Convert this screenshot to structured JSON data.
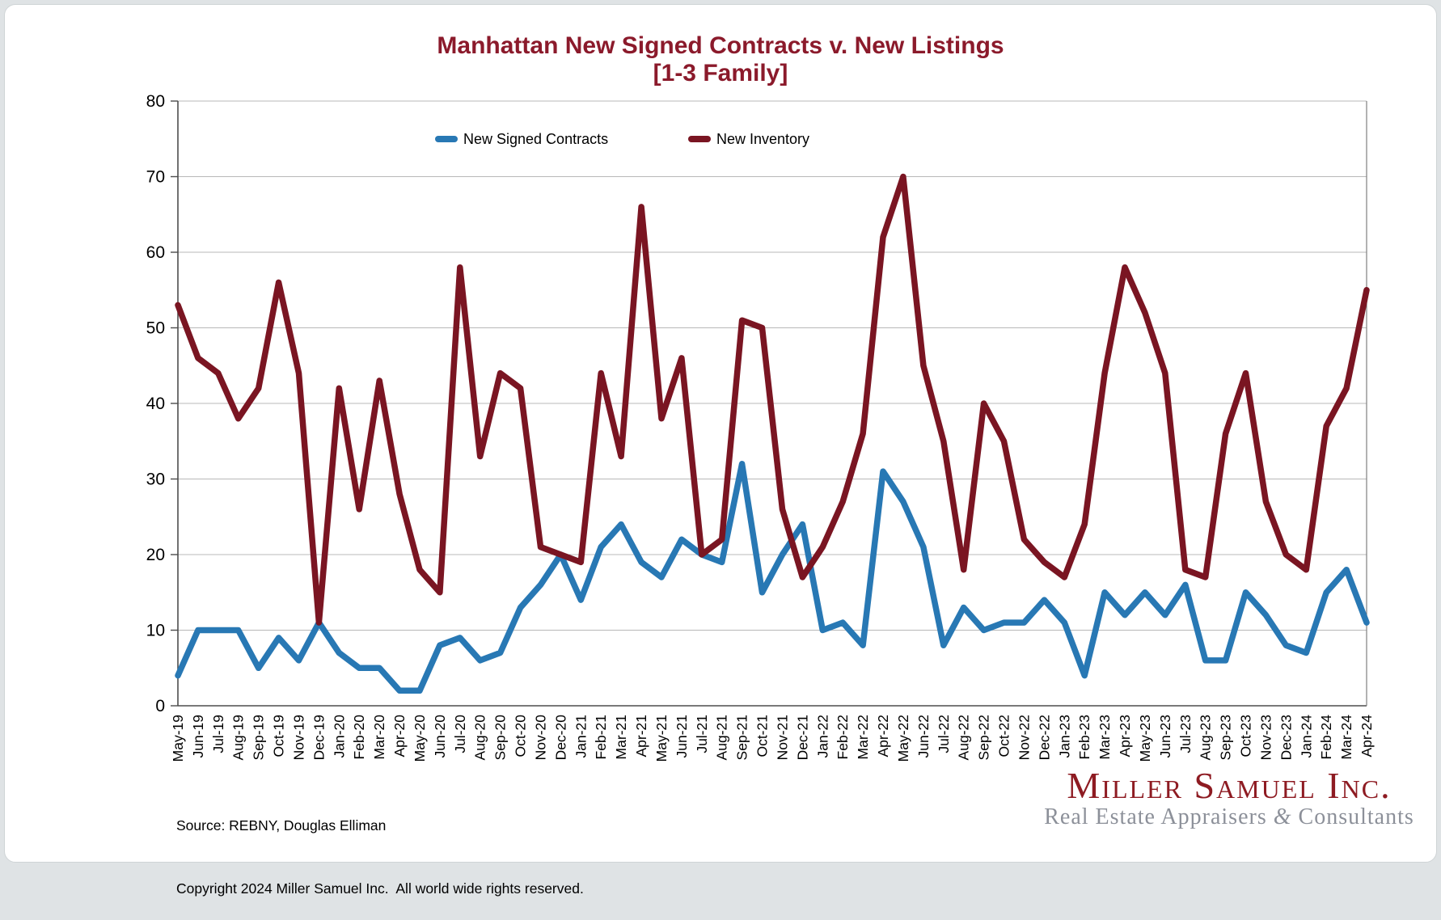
{
  "title": {
    "line1": "Manhattan New Signed Contracts v. New Listings",
    "line2": "[1-3 Family]",
    "color": "#8B1A2B"
  },
  "legend": {
    "items": [
      {
        "label": "New Signed Contracts",
        "color": "#2878B4"
      },
      {
        "label": "New Inventory",
        "color": "#7A1522"
      }
    ]
  },
  "chart_data": {
    "type": "line",
    "title": "Manhattan New Signed Contracts v. New Listings [1-3 Family]",
    "xlabel": "",
    "ylabel": "",
    "ylim": [
      0,
      80
    ],
    "ytick_step": 10,
    "grid": true,
    "legend_position": "top-center",
    "categories": [
      "May-19",
      "Jun-19",
      "Jul-19",
      "Aug-19",
      "Sep-19",
      "Oct-19",
      "Nov-19",
      "Dec-19",
      "Jan-20",
      "Feb-20",
      "Mar-20",
      "Apr-20",
      "May-20",
      "Jun-20",
      "Jul-20",
      "Aug-20",
      "Sep-20",
      "Oct-20",
      "Nov-20",
      "Dec-20",
      "Jan-21",
      "Feb-21",
      "Mar-21",
      "Apr-21",
      "May-21",
      "Jun-21",
      "Jul-21",
      "Aug-21",
      "Sep-21",
      "Oct-21",
      "Nov-21",
      "Dec-21",
      "Jan-22",
      "Feb-22",
      "Mar-22",
      "Apr-22",
      "May-22",
      "Jun-22",
      "Jul-22",
      "Aug-22",
      "Sep-22",
      "Oct-22",
      "Nov-22",
      "Dec-22",
      "Jan-23",
      "Feb-23",
      "Mar-23",
      "Apr-23",
      "May-23",
      "Jun-23",
      "Jul-23",
      "Aug-23",
      "Sep-23",
      "Oct-23",
      "Nov-23",
      "Dec-23",
      "Jan-24",
      "Feb-24",
      "Mar-24",
      "Apr-24"
    ],
    "series": [
      {
        "name": "New Signed Contracts",
        "color": "#2878B4",
        "values": [
          4,
          10,
          10,
          10,
          5,
          9,
          6,
          11,
          7,
          5,
          5,
          2,
          2,
          8,
          9,
          6,
          7,
          13,
          16,
          20,
          14,
          21,
          24,
          19,
          17,
          22,
          20,
          19,
          32,
          15,
          20,
          24,
          10,
          11,
          8,
          31,
          27,
          21,
          8,
          13,
          10,
          11,
          11,
          14,
          11,
          4,
          15,
          12,
          15,
          12,
          16,
          6,
          6,
          15,
          12,
          8,
          7,
          15,
          18,
          11
        ]
      },
      {
        "name": "New Inventory",
        "color": "#7A1522",
        "values": [
          53,
          46,
          44,
          38,
          42,
          56,
          44,
          11,
          42,
          26,
          43,
          28,
          18,
          15,
          58,
          33,
          44,
          42,
          21,
          20,
          19,
          44,
          33,
          66,
          38,
          46,
          20,
          22,
          51,
          50,
          26,
          17,
          21,
          27,
          36,
          62,
          70,
          45,
          35,
          18,
          40,
          35,
          22,
          19,
          17,
          24,
          44,
          58,
          52,
          44,
          18,
          17,
          36,
          44,
          27,
          20,
          18,
          37,
          42,
          55
        ]
      }
    ]
  },
  "axis_style": {
    "grid_color": "#B8B8B8",
    "axis_color": "#4D4D4D",
    "right_border_color": "#7F7F7F",
    "tick_label_color": "#000000"
  },
  "footer": {
    "source": "Source: REBNY, Douglas Elliman",
    "copyright": "Copyright 2024 Miller Samuel Inc.  All world wide rights reserved."
  },
  "logo": {
    "wordmark": "Miller Samuel Inc.",
    "subtitle_pre": "Real Estate Appraisers ",
    "ampersand": "&",
    "subtitle_post": " Consultants"
  }
}
